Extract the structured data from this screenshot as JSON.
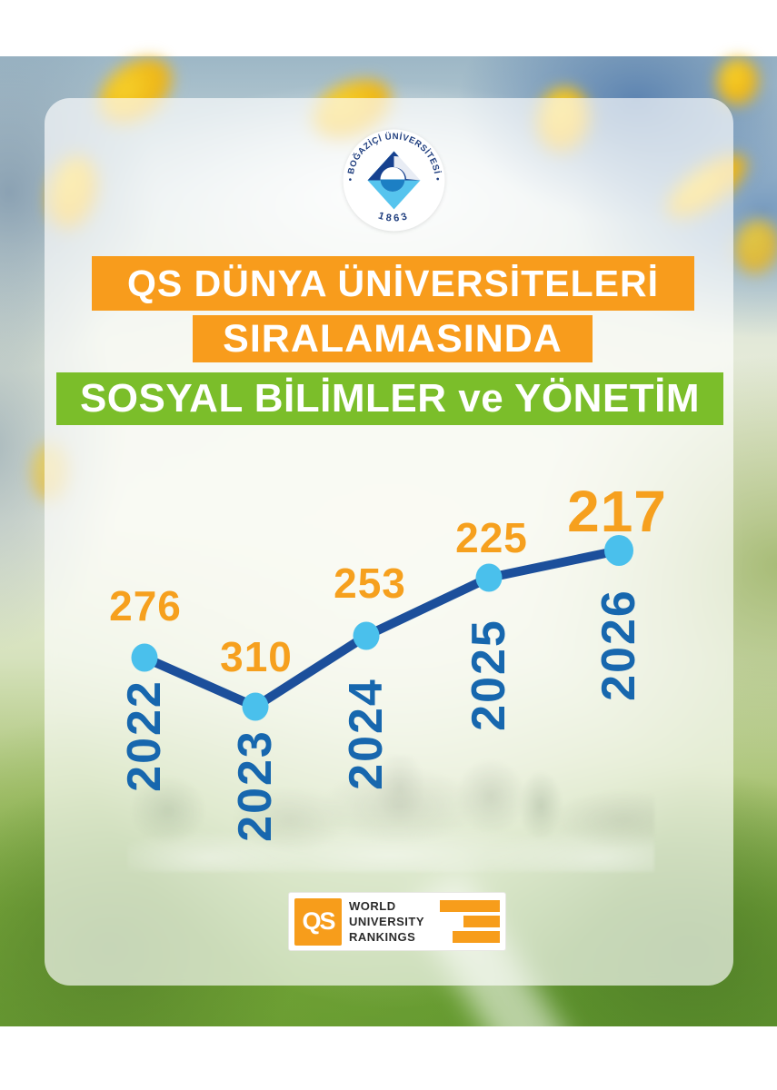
{
  "seal": {
    "arc_text": "• BOĞAZİÇİ ÜNİVERSİTESİ •",
    "founded": "1863"
  },
  "banners": {
    "line1": "QS DÜNYA ÜNİVERSİTELERİ",
    "line2": "SIRALAMASINDA",
    "subject": "SOSYAL BİLİMLER ve YÖNETİM"
  },
  "chart_data": {
    "type": "line",
    "title": "QS Dünya Üniversiteleri Sıralamasında Sosyal Bilimler ve Yönetim",
    "categories": [
      "2022",
      "2023",
      "2024",
      "2025",
      "2026"
    ],
    "values": [
      276,
      310,
      253,
      225,
      217
    ],
    "series": [
      {
        "name": "QS ranking - Sosyal Bilimler ve Yönetim",
        "values": [
          276,
          310,
          253,
          225,
          217
        ]
      }
    ],
    "note": "rank values; lower rank is plotted higher (improvement upward)",
    "grid": false,
    "legend": "none",
    "line_color": "#1C4F9B",
    "point_color": "#4AC0EC",
    "value_label_color": "#F6A01E",
    "category_label_color": "#1767AE"
  },
  "qs_logo": {
    "abbr": "QS",
    "line1": "WORLD",
    "line2": "UNIVERSITY",
    "line3": "RANKINGS"
  },
  "colors": {
    "banner_orange": "#F89C1C",
    "banner_green": "#7BBE2A"
  }
}
